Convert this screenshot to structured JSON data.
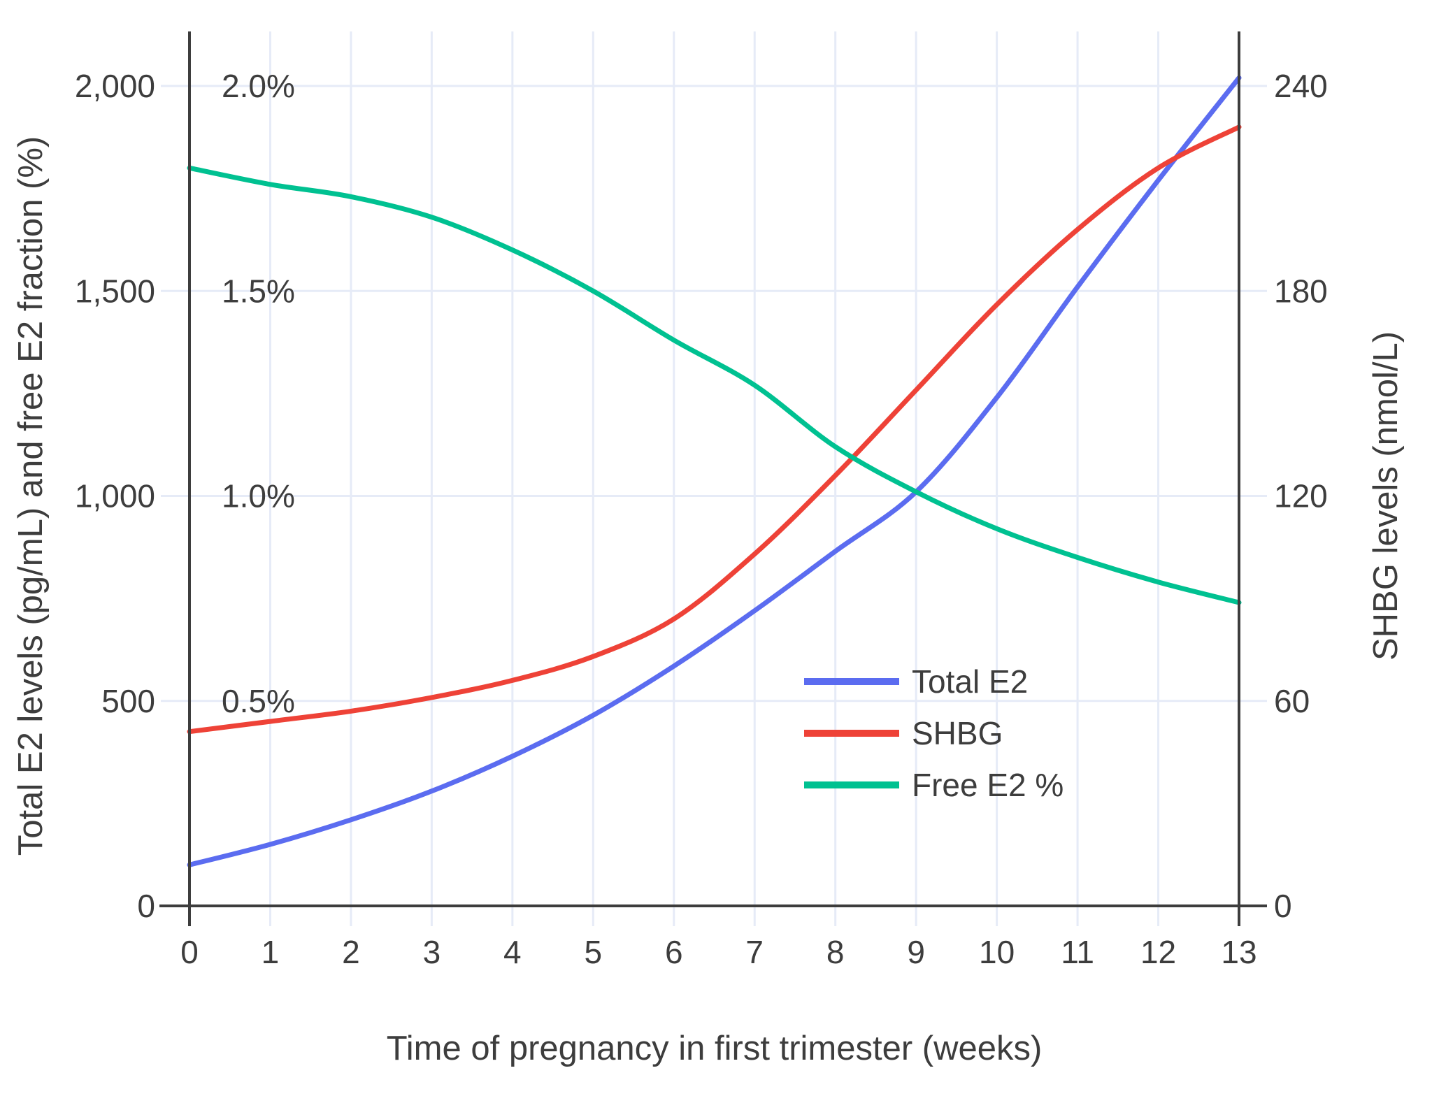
{
  "chart_data": {
    "type": "line",
    "title": "",
    "xlabel": "Time of pregnancy in first trimester (weeks)",
    "ylabel_left": "Total E2 levels (pg/mL) and free E2 fraction (%)",
    "ylabel_right": "SHBG levels (nmol/L)",
    "x": [
      0,
      1,
      2,
      3,
      4,
      5,
      6,
      7,
      8,
      9,
      10,
      11,
      12,
      13
    ],
    "x_tick_labels": [
      "0",
      "1",
      "2",
      "3",
      "4",
      "5",
      "6",
      "7",
      "8",
      "9",
      "10",
      "11",
      "12",
      "13"
    ],
    "y_left_ticks": [
      {
        "label": "0",
        "value": 0
      },
      {
        "label": "500",
        "value": 500
      },
      {
        "label": "1,000",
        "value": 1000
      },
      {
        "label": "1,500",
        "value": 1500
      },
      {
        "label": "2,000",
        "value": 2000
      }
    ],
    "y_left_percent_ticks": [
      {
        "label": "0.5%",
        "value": 500
      },
      {
        "label": "1.0%",
        "value": 1000
      },
      {
        "label": "1.5%",
        "value": 1500
      },
      {
        "label": "2.0%",
        "value": 2000
      }
    ],
    "y_right_ticks": [
      {
        "label": "0",
        "value": 0
      },
      {
        "label": "60",
        "value": 60
      },
      {
        "label": "120",
        "value": 120
      },
      {
        "label": "180",
        "value": 180
      },
      {
        "label": "240",
        "value": 240
      }
    ],
    "y_left_range": [
      0,
      2000
    ],
    "y_right_range": [
      0,
      240
    ],
    "grid": true,
    "legend_position": "inside-middle-right",
    "series": [
      {
        "name": "Total E2",
        "axis": "left",
        "unit": "pg/mL",
        "color": "#5b6cf0",
        "values": [
          100,
          150,
          210,
          280,
          365,
          465,
          585,
          720,
          865,
          1010,
          1240,
          1510,
          1770,
          2020
        ]
      },
      {
        "name": "SHBG",
        "axis": "right",
        "unit": "nmol/L",
        "color": "#ee4237",
        "values": [
          51,
          54,
          57,
          61,
          66,
          73,
          84,
          103,
          126,
          151,
          176,
          198,
          216,
          228
        ]
      },
      {
        "name": "Free E2 %",
        "axis": "left-percent",
        "unit": "%",
        "values_note": "plotted against the left percent scale where 0.5% aligns with 500",
        "color": "#00c191",
        "values": [
          1.8,
          1.76,
          1.73,
          1.68,
          1.6,
          1.5,
          1.38,
          1.27,
          1.12,
          1.01,
          0.92,
          0.85,
          0.79,
          0.74
        ]
      }
    ],
    "legend_entries": [
      "Total E2",
      "SHBG",
      "Free E2 %"
    ],
    "colors": {
      "grid": "#e6ebf7",
      "axis": "#3d3d3d",
      "text": "#3d3d3d",
      "background": "#ffffff"
    }
  }
}
